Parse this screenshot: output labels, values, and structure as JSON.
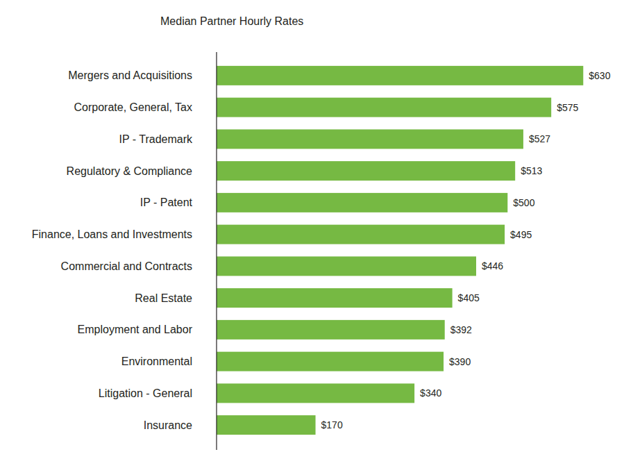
{
  "chart_data": {
    "type": "bar",
    "orientation": "horizontal",
    "title": "Median Partner Hourly Rates",
    "categories": [
      "Mergers and Acquisitions",
      "Corporate, General, Tax",
      "IP - Trademark",
      "Regulatory & Compliance",
      "IP - Patent",
      "Finance, Loans and Investments",
      "Commercial and Contracts",
      "Real Estate",
      "Employment and Labor",
      "Environmental",
      "Litigation - General",
      "Insurance"
    ],
    "values": [
      630,
      575,
      527,
      513,
      500,
      495,
      446,
      405,
      392,
      390,
      340,
      170
    ],
    "value_labels": [
      "$630",
      "$575",
      "$527",
      "$513",
      "$500",
      "$495",
      "$446",
      "$405",
      "$392",
      "$390",
      "$340",
      "$170"
    ],
    "color": "#76b943",
    "xlim": [
      0,
      700
    ],
    "grid": false,
    "data_labels": true,
    "tick_labels": "y"
  }
}
